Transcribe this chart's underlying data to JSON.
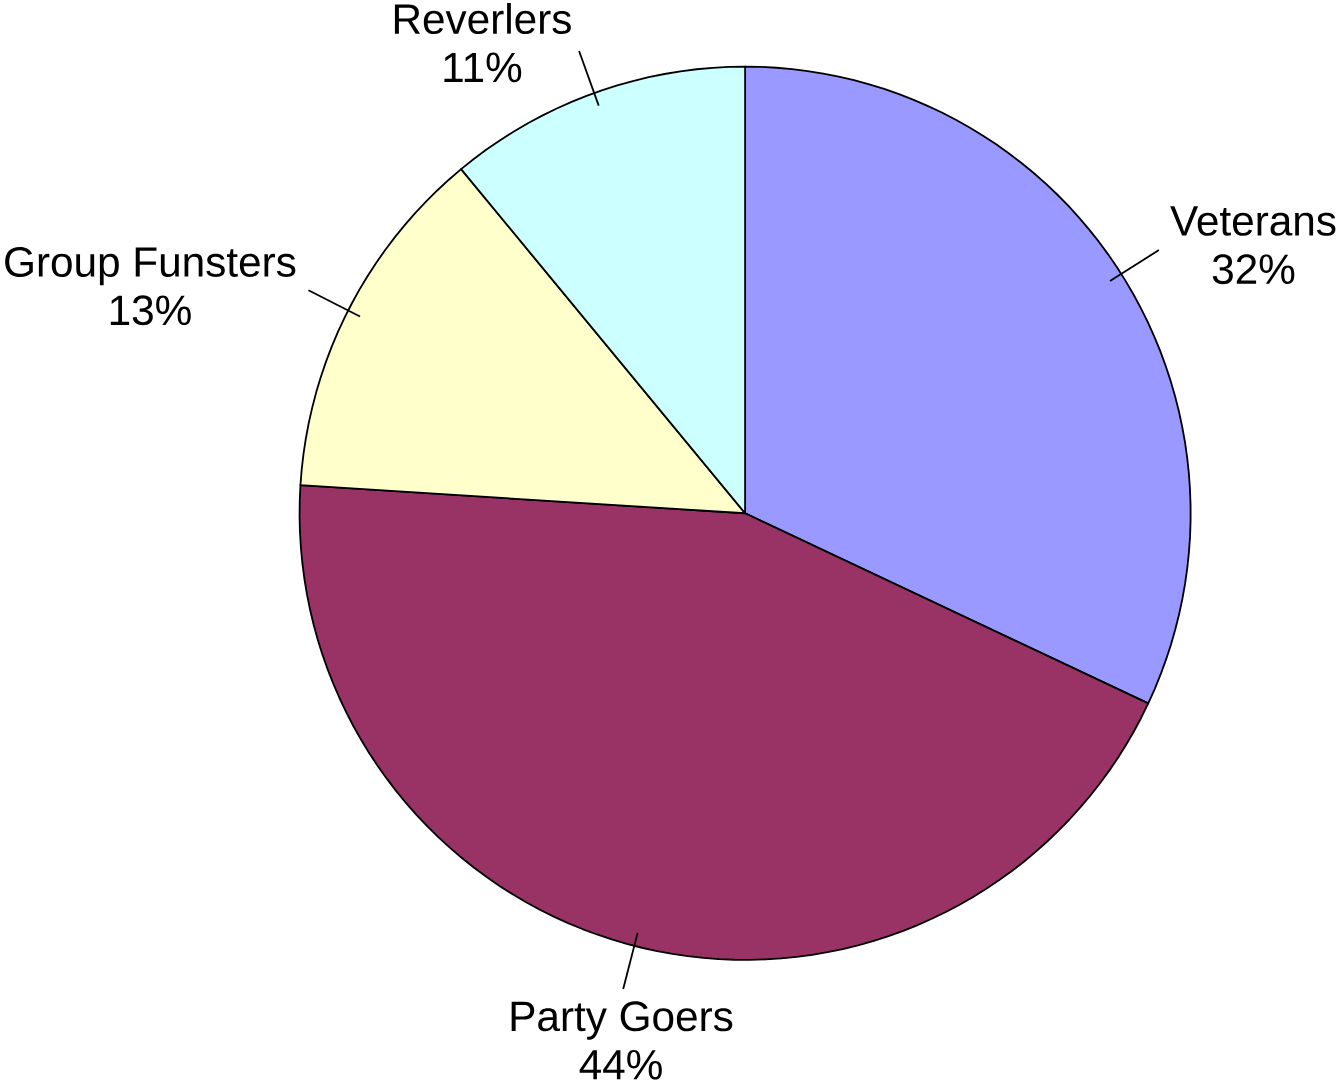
{
  "chart_data": {
    "type": "pie",
    "categories": [
      "Veterans",
      "Party Goers",
      "Group Funsters",
      "Reverlers"
    ],
    "values": [
      32,
      44,
      13,
      11
    ],
    "value_labels": [
      "32%",
      "44%",
      "13%",
      "11%"
    ],
    "colors": [
      "#9999ff",
      "#993366",
      "#ffffcc",
      "#ccffff"
    ]
  }
}
